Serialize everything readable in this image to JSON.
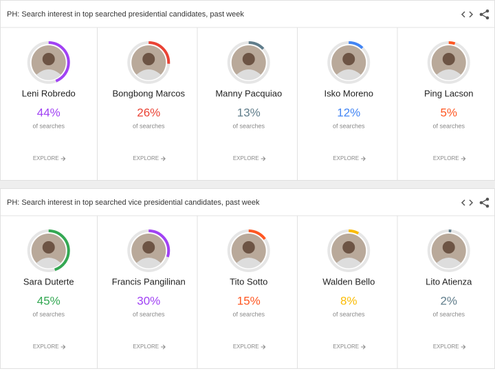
{
  "panels": [
    {
      "title": "PH: Search interest in top searched presidential candidates, past week",
      "unit_label": "of searches",
      "explore_label": "EXPLORE",
      "candidates": [
        {
          "name": "Leni Robredo",
          "value": 44,
          "value_label": "44%",
          "color": "#a142f4"
        },
        {
          "name": "Bongbong Marcos",
          "value": 26,
          "value_label": "26%",
          "color": "#ea4335"
        },
        {
          "name": "Manny Pacquiao",
          "value": 13,
          "value_label": "13%",
          "color": "#607d8b"
        },
        {
          "name": "Isko Moreno",
          "value": 12,
          "value_label": "12%",
          "color": "#4285f4"
        },
        {
          "name": "Ping Lacson",
          "value": 5,
          "value_label": "5%",
          "color": "#ff5722"
        }
      ]
    },
    {
      "title": "PH: Search interest in top searched vice presidential candidates, past week",
      "unit_label": "of searches",
      "explore_label": "EXPLORE",
      "candidates": [
        {
          "name": "Sara Duterte",
          "value": 45,
          "value_label": "45%",
          "color": "#34a853"
        },
        {
          "name": "Francis Pangilinan",
          "value": 30,
          "value_label": "30%",
          "color": "#a142f4"
        },
        {
          "name": "Tito Sotto",
          "value": 15,
          "value_label": "15%",
          "color": "#ff5722"
        },
        {
          "name": "Walden Bello",
          "value": 8,
          "value_label": "8%",
          "color": "#fbbc04"
        },
        {
          "name": "Lito Atienza",
          "value": 2,
          "value_label": "2%",
          "color": "#607d8b"
        }
      ]
    }
  ]
}
